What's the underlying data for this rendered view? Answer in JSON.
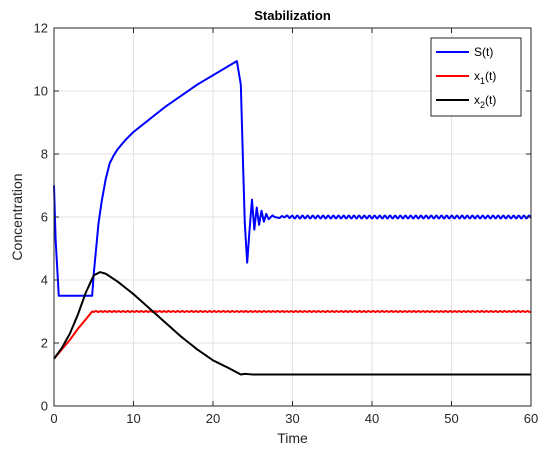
{
  "chart_data": {
    "type": "line",
    "title": "Stabilization",
    "xlabel": "Time",
    "ylabel": "Concentration",
    "xlim": [
      0,
      60
    ],
    "ylim": [
      0,
      12
    ],
    "xticks": [
      0,
      10,
      20,
      30,
      40,
      50,
      60
    ],
    "yticks": [
      0,
      2,
      4,
      6,
      8,
      10,
      12
    ],
    "grid": true,
    "legend_position": "top-right",
    "series": [
      {
        "name": "S(t)",
        "legend_main": "S(t)",
        "legend_sub": "",
        "legend_tail": "",
        "color": "#0000ff",
        "x": [
          0,
          0.2,
          0.6,
          1,
          2,
          3,
          4,
          4.8,
          5,
          5.3,
          5.6,
          6,
          6.5,
          7,
          7.5,
          8,
          9,
          10,
          12,
          14,
          16,
          18,
          20,
          22,
          23,
          23.5,
          23.8,
          24,
          24.3,
          24.6,
          24.9,
          25.2,
          25.5,
          25.8,
          26.1,
          26.4,
          26.7,
          27,
          27.5,
          28,
          29,
          30,
          35,
          40,
          45,
          50,
          55,
          60
        ],
        "y": [
          7,
          5.3,
          3.5,
          3.5,
          3.5,
          3.5,
          3.5,
          3.5,
          4.2,
          5.0,
          5.8,
          6.5,
          7.2,
          7.7,
          7.95,
          8.15,
          8.45,
          8.7,
          9.1,
          9.5,
          9.85,
          10.2,
          10.5,
          10.8,
          10.95,
          10.2,
          7.5,
          5.8,
          4.55,
          5.6,
          6.55,
          5.6,
          6.3,
          5.75,
          6.2,
          5.85,
          6.1,
          5.93,
          6.05,
          5.97,
          6.02,
          6.0,
          6.0,
          6.0,
          6.0,
          6.0,
          6.0,
          6.0
        ]
      },
      {
        "name": "x_1(t)",
        "legend_main": "x",
        "legend_sub": "1",
        "legend_tail": "(t)",
        "color": "#ff0000",
        "x": [
          0,
          1,
          2,
          3,
          4,
          4.8,
          5,
          10,
          20,
          30,
          40,
          50,
          60
        ],
        "y": [
          1.5,
          1.8,
          2.1,
          2.45,
          2.75,
          3.0,
          3.0,
          3.0,
          3.0,
          3.0,
          3.0,
          3.0,
          3.0
        ],
        "wave": {
          "from_x": 4.8,
          "amplitude": 0.015
        }
      },
      {
        "name": "x_2(t)",
        "legend_main": "x",
        "legend_sub": "2",
        "legend_tail": "(t)",
        "color": "#000000",
        "x": [
          0,
          1,
          2,
          3,
          4,
          5,
          5.8,
          6.5,
          8,
          10,
          12,
          14,
          16,
          18,
          20,
          22,
          23.5,
          24,
          25,
          30,
          40,
          50,
          60
        ],
        "y": [
          1.5,
          1.85,
          2.3,
          2.9,
          3.6,
          4.15,
          4.25,
          4.2,
          3.95,
          3.55,
          3.1,
          2.65,
          2.2,
          1.8,
          1.45,
          1.2,
          1.0,
          1.02,
          1.0,
          1.0,
          1.0,
          1.0,
          1.0
        ]
      }
    ]
  }
}
